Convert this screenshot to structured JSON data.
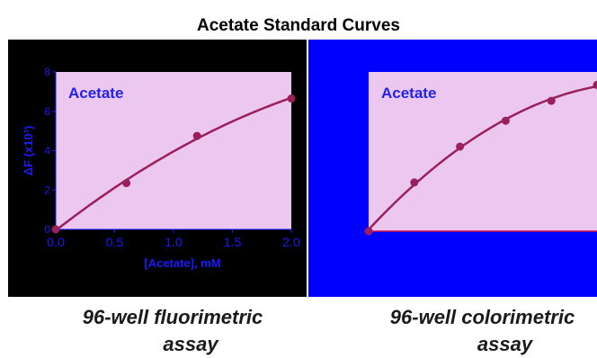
{
  "title": "Acetate Standard Curves",
  "colors": {
    "left_bg": "#000000",
    "right_bg": "#0000ff",
    "plot_bg": "#ecc8f0",
    "curve": "#9a1f5c",
    "axis_text": "#1a1aff",
    "label_text": "#2222ee"
  },
  "captions": {
    "left": [
      "96-well fluorimetric",
      "assay"
    ],
    "right": [
      "96-well colorimetric",
      "assay"
    ]
  },
  "chart_data": [
    {
      "type": "scatter",
      "title": "",
      "annotation": "Acetate",
      "xlabel": "[Acetate], mM",
      "ylabel": "ΔF (x10³)",
      "x_ticks": [
        "0.0",
        "0.5",
        "1.0",
        "1.5",
        "2.0"
      ],
      "y_ticks": [
        "0",
        "2",
        "4",
        "6",
        "8"
      ],
      "xlim": [
        0,
        2.0
      ],
      "ylim": [
        0,
        8
      ],
      "grid": false,
      "series": [
        {
          "x": [
            0.0,
            0.6,
            1.2,
            2.0
          ],
          "y": [
            0.0,
            2.35,
            4.75,
            6.65
          ],
          "fit": "curve"
        }
      ]
    },
    {
      "type": "scatter",
      "title": "",
      "annotation": "Acetate",
      "x_ticks": [],
      "y_ticks": [],
      "xlim": [
        0,
        1.0
      ],
      "ylim": [
        0,
        8
      ],
      "grid": false,
      "series": [
        {
          "x": [
            0.0,
            0.2,
            0.4,
            0.6,
            0.8,
            1.0
          ],
          "y": [
            0.0,
            2.45,
            4.25,
            5.55,
            6.55,
            7.35
          ],
          "fit": "curve"
        }
      ]
    }
  ]
}
